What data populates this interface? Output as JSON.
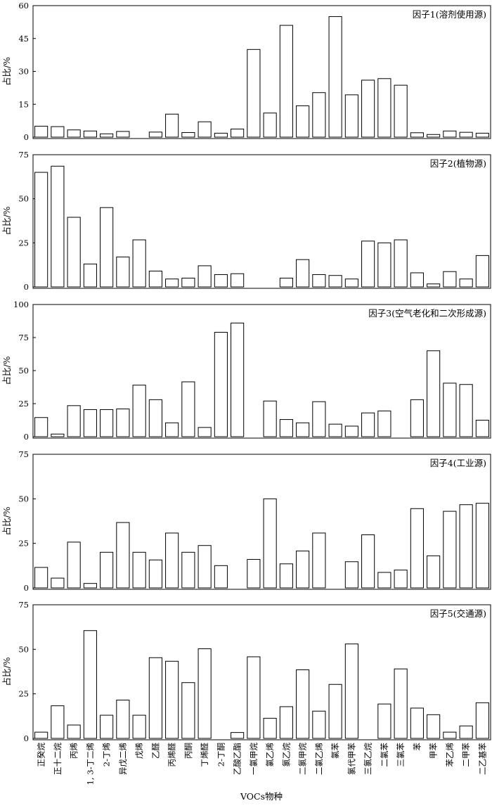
{
  "figure": {
    "xlabel": "VOCs物种",
    "categories": [
      "正癸烷",
      "正十二烷",
      "丙烯",
      "1, 3-丁二烯",
      "2-丁烯",
      "异戊二烯",
      "戊烯",
      "乙醛",
      "丙烯醛",
      "丙酮",
      "丁烯醛",
      "2-丁酮",
      "乙酸乙酯",
      "一氯甲烷",
      "氯乙烯",
      "氯乙烷",
      "二氯甲烷",
      "二氯乙烯",
      "氯苯",
      "氯代甲苯",
      "三氯乙烷",
      "二氯苯",
      "三氯苯",
      "苯",
      "甲苯",
      "苯乙烯",
      "二甲苯",
      "二乙基苯"
    ]
  },
  "chart_data": [
    {
      "type": "bar",
      "title": "因子1(溶剂使用源)",
      "ylabel": "占比/%",
      "ylim": [
        0,
        60
      ],
      "yticks": [
        0,
        15,
        30,
        45,
        60
      ],
      "grid": false,
      "values": [
        5,
        4.8,
        3.3,
        2.8,
        1.5,
        2.6,
        0,
        2.3,
        10.5,
        2.1,
        7,
        1.8,
        3.7,
        40,
        11,
        51,
        14.3,
        20.3,
        55,
        19.3,
        26,
        26.7,
        23.7,
        2,
        1.2,
        2.8,
        2.2,
        1.8
      ]
    },
    {
      "type": "bar",
      "title": "因子2(植物源)",
      "ylabel": "占比/%",
      "ylim": [
        0,
        75
      ],
      "yticks": [
        0,
        25,
        50,
        75
      ],
      "grid": false,
      "values": [
        65,
        68.5,
        39.5,
        13,
        45,
        17,
        26.7,
        9,
        4.5,
        5,
        12,
        7,
        7.5,
        0,
        0,
        5,
        15.5,
        7,
        6.5,
        4.5,
        26,
        25,
        26.7,
        8,
        1.7,
        8.7,
        4.5,
        17.8
      ]
    },
    {
      "type": "bar",
      "title": "因子3(空气老化和二次形成源)",
      "ylabel": "占比/%",
      "ylim": [
        0,
        100
      ],
      "yticks": [
        0,
        25,
        50,
        75,
        100
      ],
      "grid": false,
      "values": [
        14.5,
        2,
        23.5,
        20.5,
        20.5,
        21,
        39,
        28,
        10.5,
        41.5,
        7,
        79,
        86,
        0,
        27,
        13,
        10.5,
        26.5,
        9.5,
        8,
        18,
        19.5,
        0,
        28,
        65,
        40.5,
        39.5,
        12.5
      ]
    },
    {
      "type": "bar",
      "title": "因子4(工业源)",
      "ylabel": "占比/%",
      "ylim": [
        0,
        75
      ],
      "yticks": [
        0,
        25,
        50,
        75
      ],
      "grid": false,
      "values": [
        11.5,
        5.5,
        25.7,
        2.5,
        20,
        36.7,
        20,
        15.7,
        30.8,
        20,
        23.8,
        12.5,
        0,
        16,
        50,
        13.5,
        20.7,
        30.8,
        0,
        14.7,
        29.8,
        8.7,
        10,
        44.5,
        18,
        43,
        46.7,
        47.5
      ]
    },
    {
      "type": "bar",
      "title": "因子5(交通源)",
      "ylabel": "占比/%",
      "ylim": [
        0,
        75
      ],
      "yticks": [
        0,
        25,
        50,
        75
      ],
      "grid": false,
      "values": [
        3.5,
        18.3,
        7.5,
        60.5,
        13,
        21.5,
        13,
        45.3,
        43.3,
        31.3,
        50.3,
        0,
        3.3,
        45.8,
        11.3,
        17.8,
        38.5,
        15.3,
        30.3,
        53,
        0,
        19.3,
        39,
        17,
        13.3,
        3.5,
        7,
        20
      ]
    }
  ]
}
